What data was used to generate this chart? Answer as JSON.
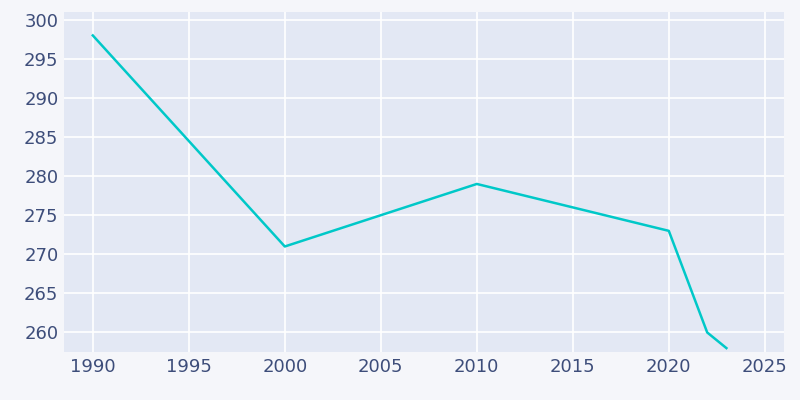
{
  "years": [
    1990,
    2000,
    2005,
    2010,
    2015,
    2020,
    2022,
    2023
  ],
  "population": [
    298,
    271,
    275,
    279,
    276,
    273,
    260,
    258
  ],
  "line_color": "#00C8C8",
  "background_color": "#E3E8F4",
  "outer_background": "#F5F6FA",
  "grid_color": "#FFFFFF",
  "tick_color": "#3D4D7A",
  "ylim": [
    257.5,
    301
  ],
  "xlim": [
    1988.5,
    2026
  ],
  "yticks": [
    260,
    265,
    270,
    275,
    280,
    285,
    290,
    295,
    300
  ],
  "xticks": [
    1990,
    1995,
    2000,
    2005,
    2010,
    2015,
    2020,
    2025
  ],
  "line_width": 1.8,
  "tick_fontsize": 13
}
